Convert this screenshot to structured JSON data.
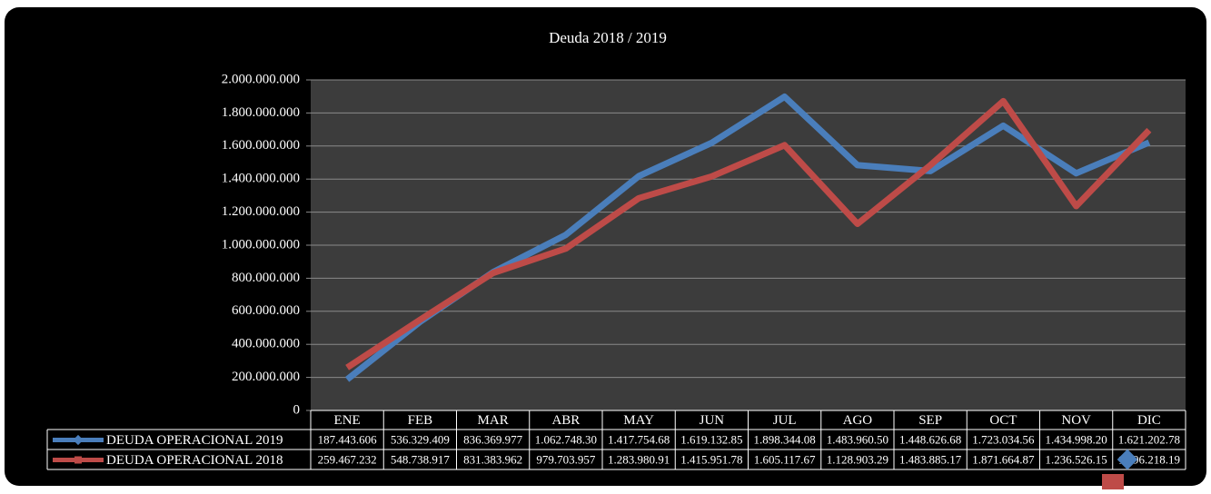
{
  "chart_data": {
    "type": "line",
    "title": "Deuda 2018 / 2019",
    "categories": [
      "ENE",
      "FEB",
      "MAR",
      "ABR",
      "MAY",
      "JUN",
      "JUL",
      "AGO",
      "SEP",
      "OCT",
      "NOV",
      "DIC"
    ],
    "series": [
      {
        "name": "DEUDA OPERACIONAL 2019",
        "color": "#4a7ebb",
        "values": [
          187443606,
          536329409,
          836369977,
          1062748300,
          1417754680,
          1619132850,
          1898344080,
          1483960500,
          1448626680,
          1723034560,
          1434998200,
          1621202780
        ],
        "value_labels": [
          "187.443.606",
          "536.329.409",
          "836.369.977",
          "1.062.748.30",
          "1.417.754.68",
          "1.619.132.85",
          "1.898.344.08",
          "1.483.960.50",
          "1.448.626.68",
          "1.723.034.56",
          "1.434.998.20",
          "1.621.202.78"
        ]
      },
      {
        "name": "DEUDA OPERACIONAL  2018",
        "color": "#be4b48",
        "values": [
          259467232,
          548738917,
          831383962,
          979703957,
          1283980910,
          1415951780,
          1605117670,
          1128903290,
          1483885170,
          1871664870,
          1236526150,
          1696218190
        ],
        "value_labels": [
          "259.467.232",
          "548.738.917",
          "831.383.962",
          "979.703.957",
          "1.283.980.91",
          "1.415.951.78",
          "1.605.117.67",
          "1.128.903.29",
          "1.483.885.17",
          "1.871.664.87",
          "1.236.526.15",
          "1.696.218.19"
        ]
      }
    ],
    "ylim": [
      0,
      2000000000
    ],
    "yticks": [
      0,
      {
        "value": 200000000,
        "label": "200.000.000"
      },
      {
        "value": 400000000,
        "label": "400.000.000"
      },
      {
        "value": 600000000,
        "label": "600.000.000"
      },
      {
        "value": 800000000,
        "label": "800.000.000"
      },
      {
        "value": 1000000000,
        "label": "1.000.000.000"
      },
      {
        "value": 1200000000,
        "label": "1.200.000.000"
      },
      {
        "value": 1400000000,
        "label": "1.400.000.000"
      },
      {
        "value": 1600000000,
        "label": "1.600.000.000"
      },
      {
        "value": 1800000000,
        "label": "1.800.000.000"
      },
      {
        "value": 2000000000,
        "label": "2.000.000.000"
      }
    ],
    "grid": true
  }
}
